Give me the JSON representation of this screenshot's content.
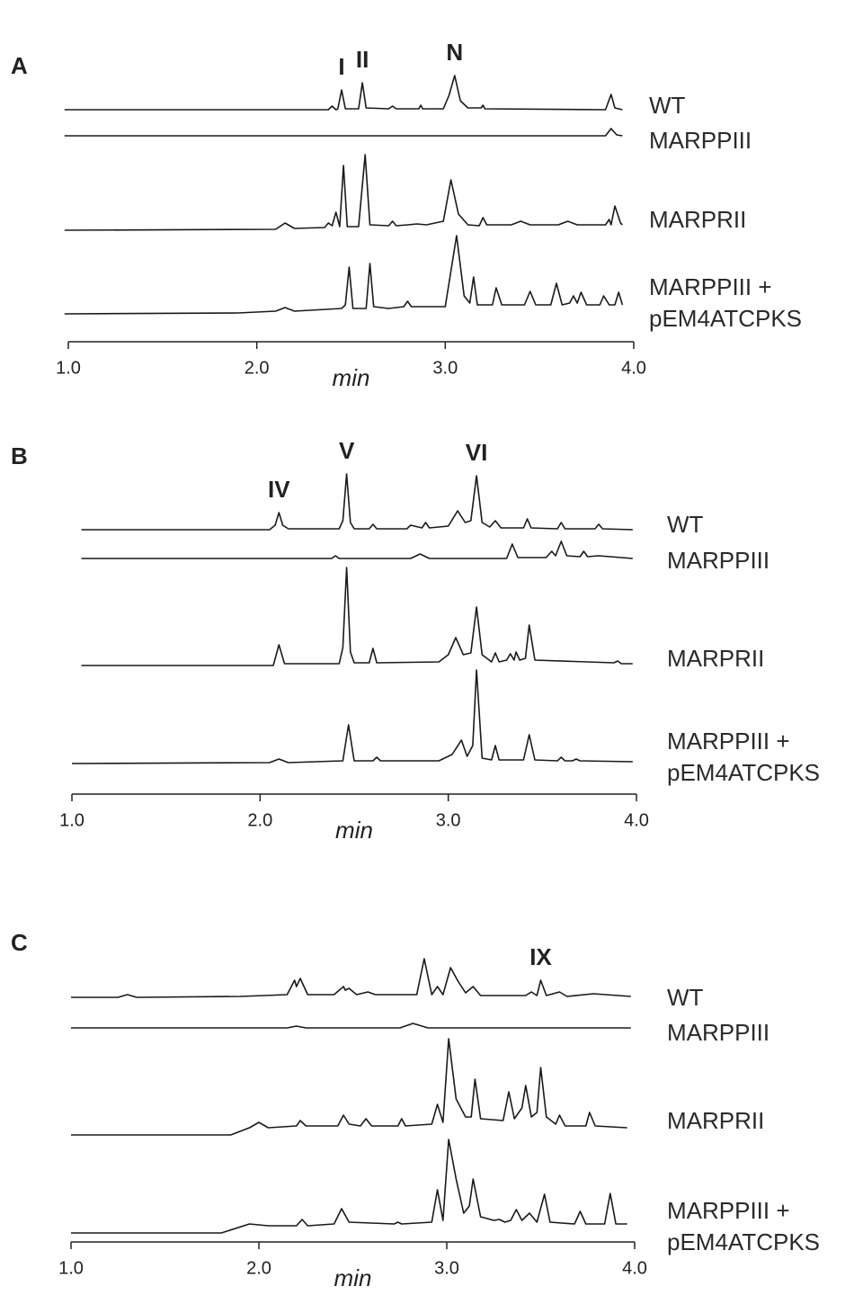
{
  "chart_data": [
    {
      "type": "line",
      "panel_label": "A",
      "xlabel": "min",
      "color": "#1a1a1a",
      "xlim": [
        1,
        4
      ],
      "xticks": [
        {
          "value": 1,
          "label": "1.0"
        },
        {
          "value": 2,
          "label": "2.0"
        },
        {
          "value": 3,
          "label": "3.0"
        },
        {
          "value": 4,
          "label": "4.0"
        }
      ],
      "annotations": [
        {
          "text": "I",
          "x": 2.45
        },
        {
          "text": "II",
          "x": 2.56
        },
        {
          "text": "N",
          "x": 3.05
        }
      ],
      "series": [
        {
          "name": "WT",
          "x": [
            0.98,
            2.38,
            2.4,
            2.42,
            2.43,
            2.45,
            2.47,
            2.54,
            2.56,
            2.58,
            2.7,
            2.72,
            2.74,
            2.86,
            2.87,
            2.88,
            2.99,
            3.02,
            3.05,
            3.08,
            3.12,
            3.19,
            3.2,
            3.21,
            3.85,
            3.88,
            3.9,
            3.94
          ],
          "values": [
            0,
            0,
            4,
            0,
            1,
            22,
            1,
            1,
            30,
            2,
            1,
            4,
            1,
            1,
            5,
            1,
            1,
            16,
            38,
            10,
            2,
            2,
            5,
            1,
            0,
            17,
            2,
            0
          ]
        },
        {
          "name": "MARPPIII",
          "x": [
            0.98,
            3.85,
            3.88,
            3.91,
            3.94
          ],
          "values": [
            0,
            0,
            8,
            1,
            0
          ]
        },
        {
          "name": "MARPRII",
          "x": [
            0.98,
            2.1,
            2.15,
            2.2,
            2.36,
            2.38,
            2.4,
            2.42,
            2.44,
            2.46,
            2.48,
            2.54,
            2.575,
            2.6,
            2.7,
            2.72,
            2.74,
            2.8,
            2.85,
            2.9,
            2.99,
            3.03,
            3.07,
            3.12,
            3.18,
            3.2,
            3.22,
            3.35,
            3.4,
            3.45,
            3.6,
            3.65,
            3.7,
            3.85,
            3.87,
            3.88,
            3.9,
            3.93,
            3.94
          ],
          "values": [
            0,
            1,
            8,
            2,
            3,
            8,
            5,
            20,
            4,
            72,
            4,
            4,
            84,
            6,
            5,
            10,
            5,
            6,
            7,
            6,
            10,
            56,
            18,
            6,
            5,
            14,
            6,
            6,
            10,
            6,
            6,
            10,
            6,
            6,
            12,
            6,
            27,
            8,
            6
          ]
        },
        {
          "name": "MARPPIII + pEM4ATCPKS",
          "x": [
            0.98,
            1.9,
            2.1,
            2.15,
            2.2,
            2.45,
            2.47,
            2.49,
            2.51,
            2.58,
            2.6,
            2.62,
            2.7,
            2.78,
            2.8,
            2.82,
            3.0,
            3.06,
            3.1,
            3.13,
            3.15,
            3.17,
            3.25,
            3.27,
            3.3,
            3.42,
            3.45,
            3.48,
            3.56,
            3.59,
            3.62,
            3.66,
            3.68,
            3.7,
            3.72,
            3.75,
            3.82,
            3.84,
            3.87,
            3.9,
            3.92,
            3.94
          ],
          "values": [
            0,
            1,
            3,
            7,
            3,
            6,
            10,
            52,
            6,
            6,
            56,
            8,
            6,
            8,
            14,
            8,
            8,
            87,
            20,
            12,
            41,
            10,
            10,
            29,
            10,
            10,
            25,
            10,
            10,
            34,
            10,
            12,
            20,
            12,
            24,
            10,
            10,
            20,
            10,
            10,
            24,
            10
          ]
        }
      ]
    },
    {
      "type": "line",
      "panel_label": "B",
      "xlabel": "min",
      "color": "#1a1a1a",
      "xlim": [
        1,
        4
      ],
      "xticks": [
        {
          "value": 1,
          "label": "1.0"
        },
        {
          "value": 2,
          "label": "2.0"
        },
        {
          "value": 3,
          "label": "3.0"
        },
        {
          "value": 4,
          "label": "4.0"
        }
      ],
      "annotations": [
        {
          "text": "IV",
          "x": 2.1
        },
        {
          "text": "V",
          "x": 2.46
        },
        {
          "text": "VI",
          "x": 3.15
        }
      ],
      "series": [
        {
          "name": "WT",
          "x": [
            1.05,
            2.05,
            2.08,
            2.1,
            2.12,
            2.15,
            2.42,
            2.44,
            2.46,
            2.48,
            2.5,
            2.58,
            2.6,
            2.62,
            2.78,
            2.8,
            2.86,
            2.88,
            2.9,
            3.0,
            3.05,
            3.09,
            3.12,
            3.15,
            3.18,
            3.22,
            3.25,
            3.28,
            3.4,
            3.42,
            3.44,
            3.58,
            3.6,
            3.62,
            3.78,
            3.8,
            3.82,
            3.98
          ],
          "values": [
            0,
            0,
            5,
            19,
            5,
            1,
            1,
            10,
            62,
            8,
            1,
            1,
            6,
            1,
            1,
            5,
            2,
            8,
            2,
            4,
            21,
            8,
            10,
            60,
            8,
            3,
            10,
            2,
            2,
            12,
            2,
            1,
            8,
            1,
            1,
            6,
            1,
            0
          ]
        },
        {
          "name": "MARPPIII",
          "x": [
            1.05,
            2.38,
            2.4,
            2.42,
            2.8,
            2.85,
            2.9,
            3.31,
            3.34,
            3.37,
            3.52,
            3.55,
            3.57,
            3.6,
            3.63,
            3.7,
            3.72,
            3.74,
            3.8,
            3.98
          ],
          "values": [
            0,
            0,
            3,
            0,
            0,
            5,
            0,
            0,
            16,
            1,
            1,
            8,
            3,
            19,
            3,
            2,
            8,
            2,
            3,
            0
          ]
        },
        {
          "name": "MARPRII",
          "x": [
            1.05,
            2.07,
            2.1,
            2.13,
            2.42,
            2.44,
            2.46,
            2.48,
            2.5,
            2.58,
            2.6,
            2.62,
            2.95,
            3.0,
            3.04,
            3.08,
            3.12,
            3.15,
            3.18,
            3.23,
            3.25,
            3.27,
            3.31,
            3.33,
            3.35,
            3.36,
            3.38,
            3.41,
            3.43,
            3.46,
            3.88,
            3.9,
            3.92,
            3.98
          ],
          "values": [
            0,
            0,
            23,
            2,
            2,
            20,
            109,
            15,
            3,
            3,
            19,
            3,
            4,
            12,
            31,
            12,
            14,
            65,
            12,
            4,
            14,
            4,
            6,
            13,
            6,
            15,
            6,
            8,
            45,
            6,
            3,
            5,
            2,
            2
          ]
        },
        {
          "name": "MARPPIII + pEM4ATCPKS",
          "x": [
            1.0,
            2.05,
            2.1,
            2.15,
            2.44,
            2.47,
            2.5,
            2.6,
            2.62,
            2.64,
            2.95,
            3.02,
            3.07,
            3.1,
            3.13,
            3.15,
            3.18,
            3.23,
            3.25,
            3.27,
            3.4,
            3.43,
            3.46,
            3.58,
            3.6,
            3.62,
            3.66,
            3.68,
            3.7,
            3.98
          ],
          "values": [
            0,
            1,
            5,
            1,
            3,
            43,
            3,
            3,
            7,
            3,
            3,
            10,
            26,
            8,
            20,
            104,
            6,
            4,
            20,
            4,
            4,
            32,
            4,
            3,
            7,
            3,
            3,
            5,
            3,
            2
          ]
        }
      ]
    },
    {
      "type": "line",
      "panel_label": "C",
      "xlabel": "min",
      "color": "#1a1a1a",
      "xlim": [
        1,
        4
      ],
      "xticks": [
        {
          "value": 1,
          "label": "1.0"
        },
        {
          "value": 2,
          "label": "2.0"
        },
        {
          "value": 3,
          "label": "3.0"
        },
        {
          "value": 4,
          "label": "4.0"
        }
      ],
      "annotations": [
        {
          "text": "IX",
          "x": 3.5
        }
      ],
      "series": [
        {
          "name": "WT",
          "x": [
            1.0,
            1.25,
            1.3,
            1.35,
            1.9,
            2.15,
            2.19,
            2.2,
            2.22,
            2.26,
            2.4,
            2.45,
            2.46,
            2.48,
            2.52,
            2.58,
            2.62,
            2.84,
            2.88,
            2.92,
            2.95,
            2.98,
            3.02,
            3.06,
            3.1,
            3.14,
            3.18,
            3.42,
            3.45,
            3.48,
            3.5,
            3.53,
            3.6,
            3.64,
            3.78,
            3.98
          ],
          "values": [
            0,
            0,
            3,
            0,
            1,
            3,
            19,
            12,
            21,
            3,
            3,
            12,
            8,
            10,
            3,
            6,
            3,
            3,
            43,
            3,
            12,
            3,
            33,
            18,
            5,
            12,
            2,
            2,
            6,
            2,
            19,
            2,
            6,
            1,
            4,
            1
          ]
        },
        {
          "name": "MARPPIII",
          "x": [
            1.0,
            2.15,
            2.2,
            2.25,
            2.75,
            2.82,
            2.9,
            3.98
          ],
          "values": [
            0,
            0,
            2,
            0,
            0,
            5,
            0,
            0
          ]
        },
        {
          "name": "MARPRII",
          "x": [
            1.0,
            1.85,
            1.95,
            2.0,
            2.05,
            2.2,
            2.22,
            2.25,
            2.42,
            2.45,
            2.48,
            2.54,
            2.57,
            2.6,
            2.74,
            2.76,
            2.78,
            2.92,
            2.95,
            2.98,
            3.01,
            3.05,
            3.1,
            3.13,
            3.15,
            3.18,
            3.3,
            3.33,
            3.36,
            3.4,
            3.42,
            3.45,
            3.48,
            3.5,
            3.53,
            3.58,
            3.6,
            3.63,
            3.74,
            3.76,
            3.79,
            3.96
          ],
          "values": [
            0,
            0,
            8,
            14,
            8,
            10,
            16,
            10,
            10,
            22,
            12,
            10,
            18,
            10,
            10,
            18,
            10,
            12,
            34,
            14,
            107,
            40,
            20,
            20,
            62,
            18,
            16,
            48,
            18,
            30,
            55,
            20,
            25,
            75,
            20,
            12,
            22,
            10,
            10,
            25,
            10,
            8
          ]
        },
        {
          "name": "MARPPIII + pEM4ATCPKS",
          "x": [
            1.0,
            1.8,
            1.95,
            2.05,
            2.2,
            2.23,
            2.26,
            2.4,
            2.44,
            2.48,
            2.72,
            2.74,
            2.76,
            2.92,
            2.95,
            2.98,
            3.01,
            3.05,
            3.09,
            3.12,
            3.14,
            3.18,
            3.25,
            3.28,
            3.31,
            3.34,
            3.37,
            3.4,
            3.44,
            3.48,
            3.52,
            3.55,
            3.68,
            3.71,
            3.74,
            3.84,
            3.87,
            3.9,
            3.96
          ],
          "values": [
            0,
            0,
            10,
            8,
            8,
            15,
            8,
            10,
            27,
            12,
            10,
            12,
            10,
            12,
            48,
            14,
            104,
            60,
            22,
            30,
            60,
            18,
            14,
            15,
            12,
            14,
            26,
            14,
            22,
            12,
            43,
            12,
            10,
            24,
            10,
            10,
            44,
            10,
            10
          ]
        }
      ]
    }
  ]
}
